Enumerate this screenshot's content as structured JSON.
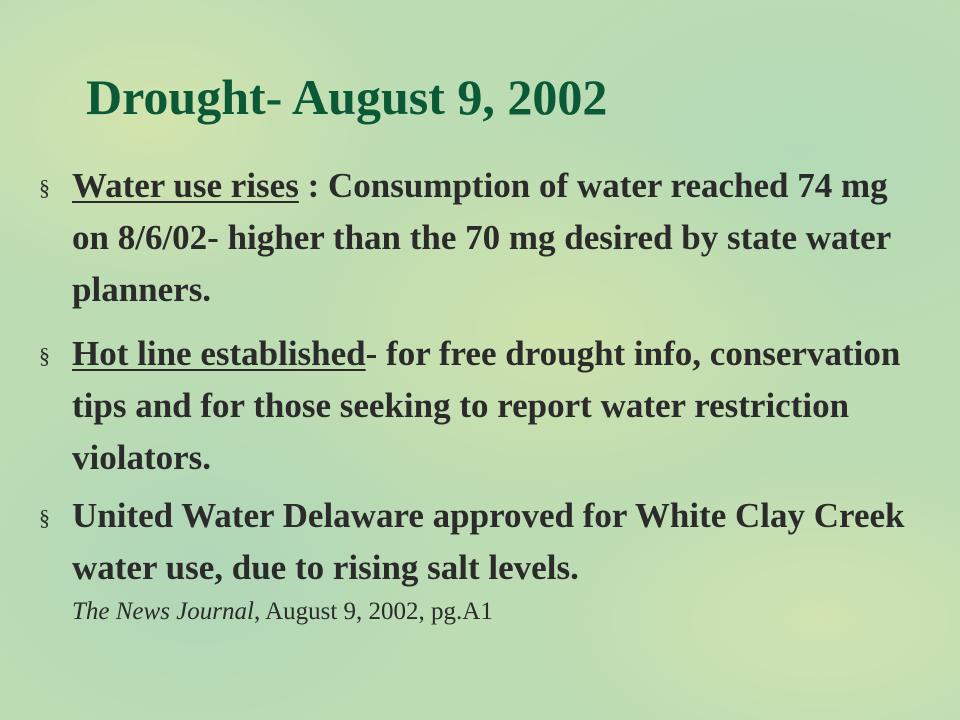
{
  "title": "Drought- August 9, 2002",
  "bullets": [
    {
      "marker": "§",
      "underlined": "Water use rises",
      "text": " : Consumption of water reached 74 mg on 8/6/02- higher than the 70 mg desired by state water planners."
    },
    {
      "marker": "§",
      "underlined": "Hot line established",
      "text": "- for free drought info, conservation tips and for those seeking to report water restriction violators."
    },
    {
      "marker": "§",
      "text": "United Water Delaware approved for White Clay Creek water use, due to rising salt levels."
    }
  ],
  "citation": {
    "source": "The News Journal",
    "text": ", August 9, 2002, pg.A1"
  }
}
